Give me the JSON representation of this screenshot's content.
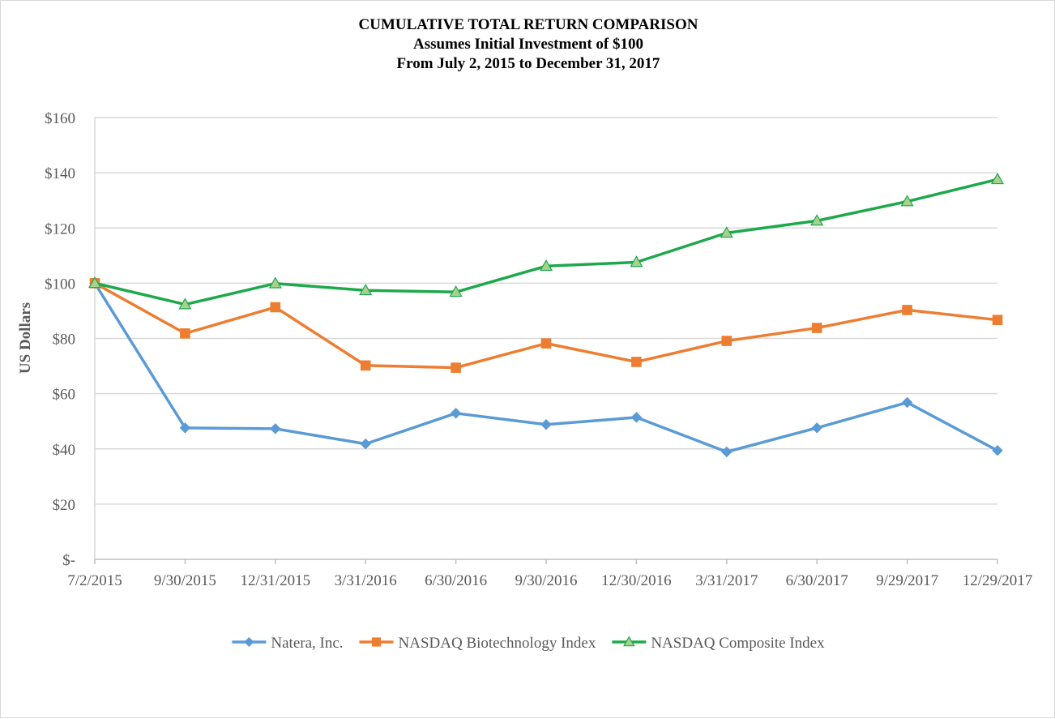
{
  "chart_data": {
    "type": "line",
    "title": "CUMULATIVE TOTAL RETURN COMPARISON",
    "subtitle_lines": [
      "Assumes Initial Investment of $100",
      "From July 2, 2015 to December 31, 2017"
    ],
    "xlabel": "",
    "ylabel": "US Dollars",
    "ylim": [
      0,
      160
    ],
    "yticks": [
      0,
      20,
      40,
      60,
      80,
      100,
      120,
      140,
      160
    ],
    "ytick_labels": [
      "$-",
      "$20",
      "$40",
      "$60",
      "$80",
      "$100",
      "$120",
      "$140",
      "$160"
    ],
    "categories": [
      "7/2/2015",
      "9/30/2015",
      "12/31/2015",
      "3/31/2016",
      "6/30/2016",
      "9/30/2016",
      "12/30/2016",
      "3/31/2017",
      "6/30/2017",
      "9/29/2017",
      "12/29/2017"
    ],
    "grid": true,
    "legend_position": "bottom",
    "series": [
      {
        "name": "Natera, Inc.",
        "color": "#5b9bd5",
        "marker": "diamond",
        "values": [
          100,
          47.6,
          47.3,
          41.8,
          52.9,
          48.8,
          51.4,
          38.9,
          47.6,
          56.8,
          39.4
        ]
      },
      {
        "name": "NASDAQ Biotechnology Index",
        "color": "#ed7d31",
        "marker": "square",
        "values": [
          100,
          81.8,
          91.3,
          70.2,
          69.4,
          78.2,
          71.5,
          79.1,
          83.8,
          90.3,
          86.7
        ]
      },
      {
        "name": "NASDAQ Composite Index",
        "color": "#1ea84c",
        "marker": "triangle",
        "values": [
          100,
          92.3,
          99.9,
          97.4,
          96.8,
          106.2,
          107.6,
          118.2,
          122.6,
          129.6,
          137.6
        ]
      }
    ]
  }
}
